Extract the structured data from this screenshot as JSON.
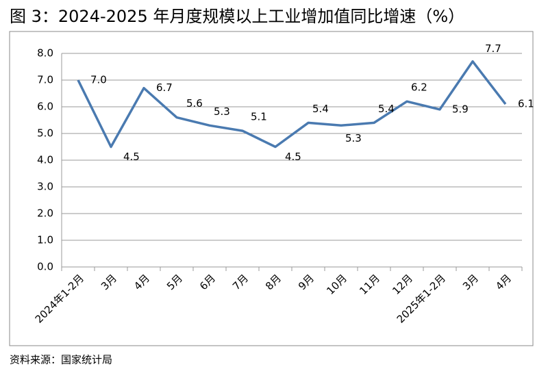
{
  "chart_data": {
    "type": "line",
    "title": "图 3：2024-2025 年月度规模以上工业增加值同比增速（%）",
    "source": "资料来源：国家统计局",
    "categories": [
      "2024年1-2月",
      "3月",
      "4月",
      "5月",
      "6月",
      "7月",
      "8月",
      "9月",
      "10月",
      "11月",
      "12月",
      "2025年1-2月",
      "3月",
      "4月"
    ],
    "values": [
      7.0,
      4.5,
      6.7,
      5.6,
      5.3,
      5.1,
      4.5,
      5.4,
      5.3,
      5.4,
      6.2,
      5.9,
      7.7,
      6.1
    ],
    "value_labels": [
      "7.0",
      "4.5",
      "6.7",
      "5.6",
      "5.3",
      "5.1",
      "4.5",
      "5.4",
      "5.3",
      "5.4",
      "6.2",
      "5.9",
      "7.7",
      "6.1"
    ],
    "color": "#4a7ab0",
    "ylim": [
      0,
      8
    ],
    "yticks": [
      {
        "value": 0,
        "label": "0.0"
      },
      {
        "value": 1,
        "label": "1.0"
      },
      {
        "value": 2,
        "label": "2.0"
      },
      {
        "value": 3,
        "label": "3.0"
      },
      {
        "value": 4,
        "label": "4.0"
      },
      {
        "value": 5,
        "label": "5.0"
      },
      {
        "value": 6,
        "label": "6.0"
      },
      {
        "value": 7,
        "label": "7.0"
      },
      {
        "value": 8,
        "label": "8.0"
      }
    ],
    "grid": true
  }
}
